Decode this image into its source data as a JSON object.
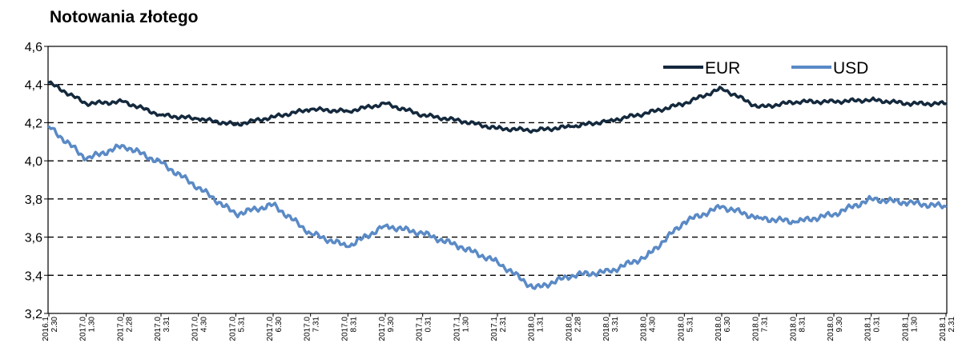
{
  "chart_data": {
    "type": "line",
    "title": "Notowania złotego",
    "xlabel": "",
    "ylabel": "",
    "ylim": [
      3.2,
      4.6
    ],
    "yticks": [
      "4,6",
      "4,4",
      "4,2",
      "4,0",
      "3,8",
      "3,6",
      "3,4",
      "3,2"
    ],
    "ytick_values": [
      4.6,
      4.4,
      4.2,
      4.0,
      3.8,
      3.6,
      3.4,
      3.2
    ],
    "grid": "horizontal dashed",
    "legend": "top-right",
    "x": [
      "2016-12-30",
      "2017-01-30",
      "2017-02-28",
      "2017-03-31",
      "2017-04-30",
      "2017-05-31",
      "2017-06-30",
      "2017-07-31",
      "2017-08-31",
      "2017-09-30",
      "2017-10-31",
      "2017-11-30",
      "2017-12-31",
      "2018-01-31",
      "2018-02-28",
      "2018-03-31",
      "2018-04-30",
      "2018-05-31",
      "2018-06-30",
      "2018-07-31",
      "2018-08-31",
      "2018-09-30",
      "2018-10-31",
      "2018-11-30",
      "2018-12-31"
    ],
    "xtick_labels": [
      [
        "2016.1",
        "2.30"
      ],
      [
        "2017.0",
        "1.30"
      ],
      [
        "2017.0",
        "2.28"
      ],
      [
        "2017.0",
        "3.31"
      ],
      [
        "2017.0",
        "4.30"
      ],
      [
        "2017.0",
        "5.31"
      ],
      [
        "2017.0",
        "6.30"
      ],
      [
        "2017.0",
        "7.31"
      ],
      [
        "2017.0",
        "8.31"
      ],
      [
        "2017.0",
        "9.30"
      ],
      [
        "2017.1",
        "0.31"
      ],
      [
        "2017.1",
        "1.30"
      ],
      [
        "2017.1",
        "2.31"
      ],
      [
        "2018.0",
        "1.31"
      ],
      [
        "2018.0",
        "2.28"
      ],
      [
        "2018.0",
        "3.31"
      ],
      [
        "2018.0",
        "4.30"
      ],
      [
        "2018.0",
        "5.31"
      ],
      [
        "2018.0",
        "6.30"
      ],
      [
        "2018.0",
        "7.31"
      ],
      [
        "2018.0",
        "8.31"
      ],
      [
        "2018.0",
        "9.30"
      ],
      [
        "2018.1",
        "0.31"
      ],
      [
        "2018.1",
        "1.30"
      ],
      [
        "2018.1",
        "2.31"
      ]
    ],
    "series": [
      {
        "name": "EUR",
        "color": "#14293d",
        "values": [
          4.41,
          4.3,
          4.31,
          4.24,
          4.22,
          4.19,
          4.23,
          4.27,
          4.26,
          4.3,
          4.24,
          4.21,
          4.17,
          4.16,
          4.18,
          4.21,
          4.25,
          4.3,
          4.38,
          4.28,
          4.31,
          4.31,
          4.32,
          4.3,
          4.3
        ]
      },
      {
        "name": "USD",
        "color": "#5a8ac6",
        "values": [
          4.18,
          4.01,
          4.08,
          3.99,
          3.86,
          3.72,
          3.77,
          3.62,
          3.55,
          3.66,
          3.62,
          3.55,
          3.47,
          3.33,
          3.4,
          3.42,
          3.5,
          3.68,
          3.76,
          3.7,
          3.68,
          3.72,
          3.8,
          3.78,
          3.76
        ]
      }
    ]
  }
}
